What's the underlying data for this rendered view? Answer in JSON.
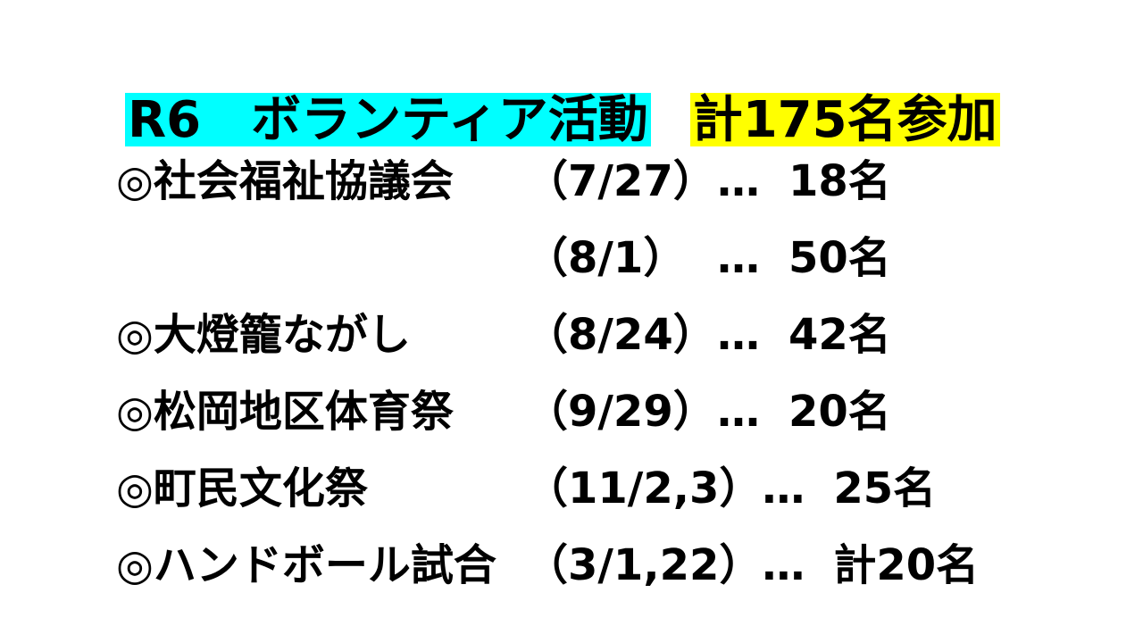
{
  "colors": {
    "background": "#ffffff",
    "text": "#000000",
    "title_activity_highlight": "#00ffff",
    "title_total_highlight": "#ffff00"
  },
  "title": {
    "activity_label": "R6　ボランティア活動",
    "total_label": "計175名参加"
  },
  "list": {
    "rows": [
      {
        "bullet": "◎",
        "name": "社会福祉協議会",
        "date": "（7/27）",
        "dots": "…",
        "count": "18名"
      },
      {
        "bullet": "",
        "name": "",
        "date": "（8/1）",
        "dots": "…",
        "count": "50名"
      },
      {
        "bullet": "◎",
        "name": "大燈籠ながし",
        "date": "（8/24）",
        "dots": "…",
        "count": "42名"
      },
      {
        "bullet": "◎",
        "name": "松岡地区体育祭",
        "date": "（9/29）",
        "dots": "…",
        "count": "20名"
      },
      {
        "bullet": "◎",
        "name": "町民文化祭",
        "date": "（11/2,3）",
        "dots": "…",
        "count": "25名"
      },
      {
        "bullet": "◎",
        "name": "ハンドボール試合",
        "date": "（3/1,22）",
        "dots": "…",
        "count": "計20名"
      }
    ]
  }
}
